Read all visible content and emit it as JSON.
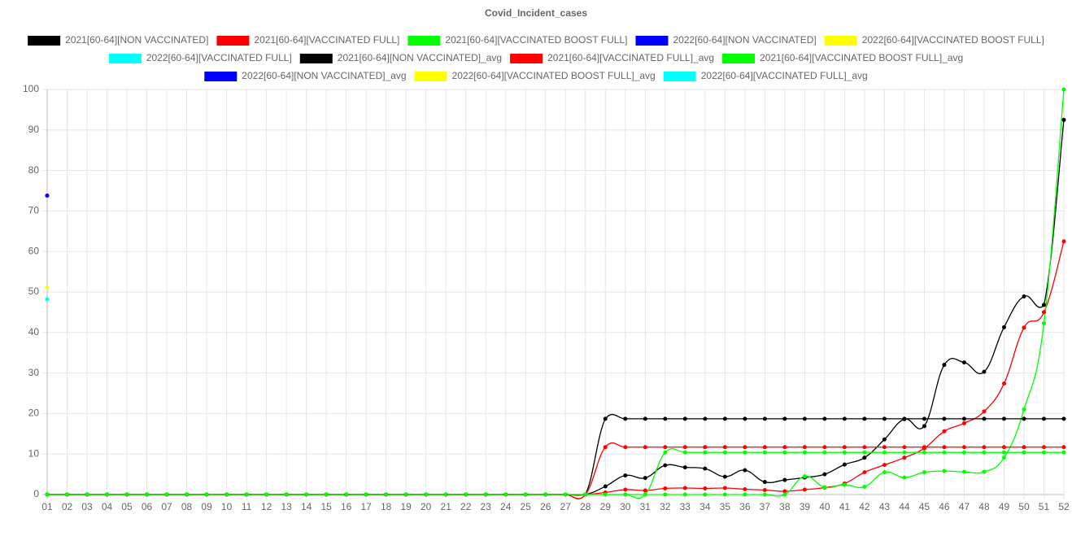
{
  "chart_data": {
    "type": "line",
    "title": "Covid_Incident_cases",
    "categories": [
      "01",
      "02",
      "03",
      "04",
      "05",
      "06",
      "07",
      "08",
      "09",
      "10",
      "11",
      "12",
      "13",
      "14",
      "15",
      "16",
      "17",
      "18",
      "19",
      "20",
      "21",
      "22",
      "23",
      "24",
      "25",
      "26",
      "27",
      "28",
      "29",
      "30",
      "31",
      "32",
      "33",
      "34",
      "35",
      "36",
      "37",
      "38",
      "39",
      "40",
      "41",
      "42",
      "43",
      "44",
      "45",
      "46",
      "47",
      "48",
      "49",
      "50",
      "51",
      "52"
    ],
    "ylim": [
      0,
      100
    ],
    "yticks": [
      0,
      10,
      20,
      30,
      40,
      50,
      60,
      70,
      80,
      90,
      100
    ],
    "grid": true,
    "legend": "top",
    "series": [
      {
        "name": "2021[60-64][NON VACCINATED]",
        "color": "#000000",
        "values": [
          0,
          0,
          0,
          0,
          0,
          0,
          0,
          0,
          0,
          0,
          0,
          0,
          0,
          0,
          0,
          0,
          0,
          0,
          0,
          0,
          0,
          0,
          0,
          0,
          0,
          0,
          0,
          0,
          2,
          4.7,
          4.1,
          7.2,
          6.7,
          6.4,
          4.4,
          6,
          3.1,
          3.6,
          4.2,
          5,
          7.4,
          9.1,
          13.6,
          18.6,
          16.9,
          32,
          32.6,
          30.3,
          41.3,
          48.9,
          46.8,
          92.5
        ]
      },
      {
        "name": "2021[60-64][VACCINATED FULL]",
        "color": "#ff0000",
        "values": [
          0,
          0,
          0,
          0,
          0,
          0,
          0,
          0,
          0,
          0,
          0,
          0,
          0,
          0,
          0,
          0,
          0,
          0,
          0,
          0,
          0,
          0,
          0,
          0,
          0,
          0,
          0,
          0,
          0.5,
          1.2,
          1,
          1.5,
          1.6,
          1.5,
          1.6,
          1.3,
          1.1,
          0.8,
          1.2,
          1.7,
          2.7,
          5.5,
          7.3,
          9.1,
          11.4,
          15.6,
          17.6,
          20.5,
          27.4,
          41.2,
          45,
          62.5
        ]
      },
      {
        "name": "2021[60-64][VACCINATED BOOST FULL]",
        "color": "#00ff00",
        "values": [
          0,
          0,
          0,
          0,
          0,
          0,
          0,
          0,
          0,
          0,
          0,
          0,
          0,
          0,
          0,
          0,
          0,
          0,
          0,
          0,
          0,
          0,
          0,
          0,
          0,
          0,
          0,
          0,
          0,
          0,
          0,
          0,
          0,
          0,
          0,
          0,
          0,
          0,
          4.5,
          1.8,
          2.4,
          1.9,
          5.5,
          4.2,
          5.5,
          5.8,
          5.6,
          5.6,
          9.1,
          21,
          42.3,
          100
        ]
      },
      {
        "name": "2022[60-64][NON VACCINATED]",
        "color": "#0000ff",
        "values": [
          73.8,
          null,
          null,
          null,
          null,
          null,
          null,
          null,
          null,
          null,
          null,
          null,
          null,
          null,
          null,
          null,
          null,
          null,
          null,
          null,
          null,
          null,
          null,
          null,
          null,
          null,
          null,
          null,
          null,
          null,
          null,
          null,
          null,
          null,
          null,
          null,
          null,
          null,
          null,
          null,
          null,
          null,
          null,
          null,
          null,
          null,
          null,
          null,
          null,
          null,
          null,
          null
        ]
      },
      {
        "name": "2022[60-64][VACCINATED BOOST FULL]",
        "color": "#ffff00",
        "values": [
          51.1,
          null,
          null,
          null,
          null,
          null,
          null,
          null,
          null,
          null,
          null,
          null,
          null,
          null,
          null,
          null,
          null,
          null,
          null,
          null,
          null,
          null,
          null,
          null,
          null,
          null,
          null,
          null,
          null,
          null,
          null,
          null,
          null,
          null,
          null,
          null,
          null,
          null,
          null,
          null,
          null,
          null,
          null,
          null,
          null,
          null,
          null,
          null,
          null,
          null,
          null,
          null
        ]
      },
      {
        "name": "2022[60-64][VACCINATED FULL]",
        "color": "#00ffff",
        "values": [
          48.2,
          null,
          null,
          null,
          null,
          null,
          null,
          null,
          null,
          null,
          null,
          null,
          null,
          null,
          null,
          null,
          null,
          null,
          null,
          null,
          null,
          null,
          null,
          null,
          null,
          null,
          null,
          null,
          null,
          null,
          null,
          null,
          null,
          null,
          null,
          null,
          null,
          null,
          null,
          null,
          null,
          null,
          null,
          null,
          null,
          null,
          null,
          null,
          null,
          null,
          null,
          null
        ]
      },
      {
        "name": "2021[60-64][NON VACCINATED]_avg",
        "color": "#000000",
        "values": [
          0,
          0,
          0,
          0,
          0,
          0,
          0,
          0,
          0,
          0,
          0,
          0,
          0,
          0,
          0,
          0,
          0,
          0,
          0,
          0,
          0,
          0,
          0,
          0,
          0,
          0,
          0,
          0,
          18.7,
          18.7,
          18.7,
          18.7,
          18.7,
          18.7,
          18.7,
          18.7,
          18.7,
          18.7,
          18.7,
          18.7,
          18.7,
          18.7,
          18.7,
          18.7,
          18.7,
          18.7,
          18.7,
          18.7,
          18.7,
          18.7,
          18.7,
          18.7
        ]
      },
      {
        "name": "2021[60-64][VACCINATED FULL]_avg",
        "color": "#ff0000",
        "values": [
          0,
          0,
          0,
          0,
          0,
          0,
          0,
          0,
          0,
          0,
          0,
          0,
          0,
          0,
          0,
          0,
          0,
          0,
          0,
          0,
          0,
          0,
          0,
          0,
          0,
          0,
          0,
          0,
          11.7,
          11.7,
          11.7,
          11.7,
          11.7,
          11.7,
          11.7,
          11.7,
          11.7,
          11.7,
          11.7,
          11.7,
          11.7,
          11.7,
          11.7,
          11.7,
          11.7,
          11.7,
          11.7,
          11.7,
          11.7,
          11.7,
          11.7,
          11.7
        ]
      },
      {
        "name": "2021[60-64][VACCINATED BOOST FULL]_avg",
        "color": "#00ff00",
        "values": [
          0,
          0,
          0,
          0,
          0,
          0,
          0,
          0,
          0,
          0,
          0,
          0,
          0,
          0,
          0,
          0,
          0,
          0,
          0,
          0,
          0,
          0,
          0,
          0,
          0,
          0,
          0,
          0,
          0,
          0,
          0,
          10.4,
          10.4,
          10.4,
          10.4,
          10.4,
          10.4,
          10.4,
          10.4,
          10.4,
          10.4,
          10.4,
          10.4,
          10.4,
          10.4,
          10.4,
          10.4,
          10.4,
          10.4,
          10.4,
          10.4,
          10.4
        ]
      },
      {
        "name": "2022[60-64][NON VACCINATED]_avg",
        "color": "#0000ff",
        "values": [
          73.8,
          null,
          null,
          null,
          null,
          null,
          null,
          null,
          null,
          null,
          null,
          null,
          null,
          null,
          null,
          null,
          null,
          null,
          null,
          null,
          null,
          null,
          null,
          null,
          null,
          null,
          null,
          null,
          null,
          null,
          null,
          null,
          null,
          null,
          null,
          null,
          null,
          null,
          null,
          null,
          null,
          null,
          null,
          null,
          null,
          null,
          null,
          null,
          null,
          null,
          null,
          null
        ]
      },
      {
        "name": "2022[60-64][VACCINATED BOOST FULL]_avg",
        "color": "#ffff00",
        "values": [
          51.1,
          null,
          null,
          null,
          null,
          null,
          null,
          null,
          null,
          null,
          null,
          null,
          null,
          null,
          null,
          null,
          null,
          null,
          null,
          null,
          null,
          null,
          null,
          null,
          null,
          null,
          null,
          null,
          null,
          null,
          null,
          null,
          null,
          null,
          null,
          null,
          null,
          null,
          null,
          null,
          null,
          null,
          null,
          null,
          null,
          null,
          null,
          null,
          null,
          null,
          null,
          null
        ]
      },
      {
        "name": "2022[60-64][VACCINATED FULL]_avg",
        "color": "#00ffff",
        "values": [
          48.2,
          null,
          null,
          null,
          null,
          null,
          null,
          null,
          null,
          null,
          null,
          null,
          null,
          null,
          null,
          null,
          null,
          null,
          null,
          null,
          null,
          null,
          null,
          null,
          null,
          null,
          null,
          null,
          null,
          null,
          null,
          null,
          null,
          null,
          null,
          null,
          null,
          null,
          null,
          null,
          null,
          null,
          null,
          null,
          null,
          null,
          null,
          null,
          null,
          null,
          null,
          null
        ]
      }
    ]
  }
}
